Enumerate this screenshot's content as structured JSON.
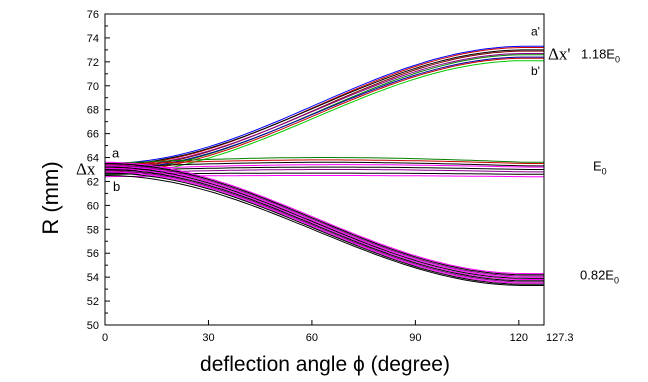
{
  "chart_data": {
    "type": "line",
    "title": "",
    "xlabel": "deflection angle ϕ (degree)",
    "ylabel": "R (mm)",
    "xlim": [
      0,
      127.3
    ],
    "ylim": [
      50,
      76
    ],
    "x_ticks": [
      0,
      30,
      60,
      90,
      120,
      127.3
    ],
    "y_ticks": [
      50,
      52,
      54,
      56,
      58,
      60,
      62,
      64,
      66,
      68,
      70,
      72,
      74,
      76
    ],
    "x_tick_labels": [
      "0",
      "30",
      "60",
      "90",
      "120",
      "127.3"
    ],
    "y_tick_labels": [
      "50",
      "52",
      "54",
      "56",
      "58",
      "60",
      "62",
      "64",
      "66",
      "68",
      "70",
      "72",
      "74",
      "76"
    ],
    "grid": false,
    "groups": [
      {
        "energy_label": "1.18E",
        "energy_subscript": "0",
        "start_label": "a",
        "end_label_top": "a'",
        "end_label_bottom": "b'",
        "delta_label": "Δx'",
        "series": [
          {
            "color": "#0000ff",
            "start": 63.5,
            "end": 73.3
          },
          {
            "color": "#cc0000",
            "start": 63.3,
            "end": 73.2
          },
          {
            "color": "#000000",
            "start": 63.4,
            "end": 73.0
          },
          {
            "color": "#800000",
            "start": 63.1,
            "end": 72.9
          },
          {
            "color": "#8b008b",
            "start": 63.2,
            "end": 72.7
          },
          {
            "color": "#008000",
            "start": 62.9,
            "end": 72.6
          },
          {
            "color": "#0000aa",
            "start": 63.0,
            "end": 72.4
          },
          {
            "color": "#cc0000",
            "start": 62.8,
            "end": 72.3
          },
          {
            "color": "#00cc00",
            "start": 62.6,
            "end": 72.1
          }
        ]
      },
      {
        "energy_label": "E",
        "energy_subscript": "0",
        "start_label": "b",
        "delta_label": "Δx",
        "series": [
          {
            "color": "#008000",
            "start": 63.5,
            "mid": 64.0,
            "end": 63.6
          },
          {
            "color": "#cc0000",
            "start": 63.4,
            "mid": 63.8,
            "end": 63.5
          },
          {
            "color": "#000000",
            "start": 63.2,
            "mid": 63.6,
            "end": 63.3
          },
          {
            "color": "#ff00ff",
            "start": 63.0,
            "mid": 63.4,
            "end": 63.2
          },
          {
            "color": "#000000",
            "start": 62.9,
            "mid": 63.2,
            "end": 63.0
          },
          {
            "color": "#8b008b",
            "start": 62.7,
            "mid": 63.0,
            "end": 62.8
          },
          {
            "color": "#000000",
            "start": 62.6,
            "mid": 62.7,
            "end": 62.6
          },
          {
            "color": "#ff00ff",
            "start": 62.4,
            "mid": 62.5,
            "end": 62.4
          }
        ]
      },
      {
        "energy_label": "0.82E",
        "energy_subscript": "0",
        "series": [
          {
            "color": "#ff00ff",
            "start": 63.6,
            "end": 54.3
          },
          {
            "color": "#000000",
            "start": 63.5,
            "end": 54.2
          },
          {
            "color": "#8b008b",
            "start": 63.4,
            "end": 54.1
          },
          {
            "color": "#ff00ff",
            "start": 63.3,
            "end": 54.0
          },
          {
            "color": "#000000",
            "start": 63.2,
            "end": 53.9
          },
          {
            "color": "#ff00ff",
            "start": 63.1,
            "end": 53.8
          },
          {
            "color": "#000000",
            "start": 63.0,
            "end": 53.7
          },
          {
            "color": "#8b008b",
            "start": 62.9,
            "end": 53.6
          },
          {
            "color": "#ff00ff",
            "start": 62.8,
            "end": 53.5
          },
          {
            "color": "#000000",
            "start": 62.7,
            "end": 53.4
          },
          {
            "color": "#000000",
            "start": 62.5,
            "end": 53.3
          }
        ]
      }
    ]
  }
}
